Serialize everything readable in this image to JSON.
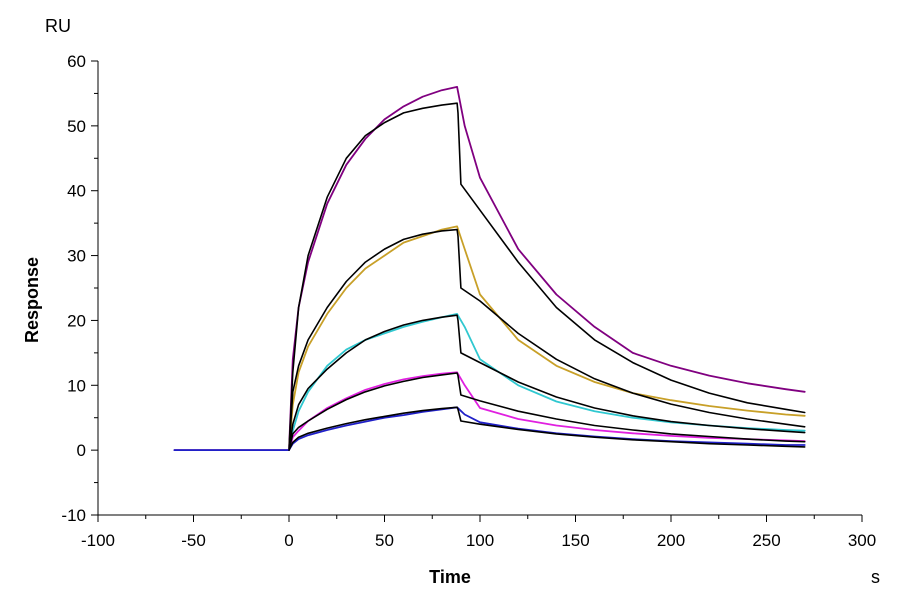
{
  "chart_data": {
    "type": "line",
    "xlabel": "Time",
    "ylabel": "Response",
    "x_unit": "s",
    "y_unit": "RU",
    "xlim": [
      -100,
      300
    ],
    "ylim": [
      -10,
      60
    ],
    "x_ticks": [
      -100,
      -50,
      0,
      50,
      100,
      150,
      200,
      250,
      300
    ],
    "y_ticks": [
      -10,
      0,
      10,
      20,
      30,
      40,
      50,
      60
    ],
    "grid": false,
    "legend": "none",
    "series": [
      {
        "color": "#800080",
        "x": [
          -60,
          0,
          2,
          5,
          10,
          20,
          30,
          40,
          50,
          60,
          70,
          80,
          88,
          92,
          100,
          120,
          140,
          160,
          180,
          200,
          220,
          240,
          260,
          270
        ],
        "values": [
          0,
          0,
          14,
          22,
          29,
          38,
          44,
          48,
          51,
          53,
          54.5,
          55.5,
          56,
          50,
          42,
          31,
          24,
          19,
          15,
          13,
          11.5,
          10.3,
          9.4,
          9.0
        ]
      },
      {
        "color": "#000000",
        "x": [
          0,
          2,
          5,
          10,
          20,
          30,
          40,
          50,
          60,
          70,
          80,
          88,
          88.5,
          90,
          100,
          120,
          140,
          160,
          180,
          200,
          220,
          240,
          260,
          270
        ],
        "values": [
          0,
          12,
          22,
          30,
          39,
          45,
          48.5,
          50.5,
          52,
          52.7,
          53.2,
          53.5,
          52,
          41,
          37,
          29,
          22,
          17,
          13.5,
          10.8,
          8.8,
          7.3,
          6.3,
          5.8
        ]
      },
      {
        "color": "#C8A028",
        "x": [
          -60,
          0,
          2,
          5,
          10,
          20,
          30,
          40,
          50,
          60,
          70,
          80,
          88,
          92,
          100,
          120,
          140,
          160,
          180,
          200,
          220,
          240,
          260,
          270
        ],
        "values": [
          0,
          0,
          7,
          12,
          16,
          21,
          25,
          28,
          30,
          32,
          33,
          34,
          34.5,
          31,
          24,
          17,
          13,
          10.5,
          8.8,
          7.7,
          6.8,
          6.1,
          5.5,
          5.3
        ]
      },
      {
        "color": "#000000",
        "x": [
          0,
          2,
          5,
          10,
          20,
          30,
          40,
          50,
          60,
          70,
          80,
          88,
          88.5,
          90,
          100,
          120,
          140,
          160,
          180,
          200,
          220,
          240,
          260,
          270
        ],
        "values": [
          0,
          9,
          13,
          17,
          22,
          26,
          29,
          31,
          32.5,
          33.3,
          33.8,
          34,
          33,
          25,
          23,
          18,
          14,
          11,
          8.8,
          7.1,
          5.8,
          4.8,
          4.0,
          3.6
        ]
      },
      {
        "color": "#30C8D0",
        "x": [
          -60,
          0,
          2,
          5,
          10,
          20,
          30,
          40,
          50,
          60,
          70,
          80,
          88,
          92,
          100,
          120,
          140,
          160,
          180,
          200,
          220,
          240,
          260,
          270
        ],
        "values": [
          0,
          0,
          3,
          6,
          9,
          13,
          15.5,
          17,
          18,
          19,
          19.8,
          20.5,
          21,
          19,
          14,
          10,
          7.5,
          6,
          5,
          4.3,
          3.8,
          3.4,
          3.1,
          3.0
        ]
      },
      {
        "color": "#000000",
        "x": [
          0,
          2,
          5,
          10,
          20,
          30,
          40,
          50,
          60,
          70,
          80,
          88,
          88.5,
          90,
          100,
          120,
          140,
          160,
          180,
          200,
          220,
          240,
          260,
          270
        ],
        "values": [
          0,
          4,
          7,
          9.5,
          12.5,
          15,
          17,
          18.3,
          19.3,
          20,
          20.5,
          20.8,
          20,
          15,
          13.5,
          10.5,
          8.2,
          6.5,
          5.3,
          4.4,
          3.8,
          3.3,
          2.9,
          2.7
        ]
      },
      {
        "color": "#E020E0",
        "x": [
          -60,
          0,
          2,
          5,
          10,
          20,
          30,
          40,
          50,
          60,
          70,
          80,
          88,
          92,
          100,
          120,
          140,
          160,
          180,
          200,
          220,
          240,
          260,
          270
        ],
        "values": [
          0,
          0,
          2,
          3,
          4.5,
          6.5,
          8,
          9.3,
          10.2,
          10.9,
          11.4,
          11.8,
          12,
          10,
          6.5,
          4.8,
          3.8,
          3.1,
          2.6,
          2.2,
          1.9,
          1.7,
          1.5,
          1.4
        ]
      },
      {
        "color": "#000000",
        "x": [
          0,
          2,
          5,
          10,
          20,
          30,
          40,
          50,
          60,
          70,
          80,
          88,
          88.5,
          90,
          100,
          120,
          140,
          160,
          180,
          200,
          220,
          240,
          260,
          270
        ],
        "values": [
          0,
          2.5,
          3.5,
          4.5,
          6.3,
          7.8,
          9,
          9.9,
          10.6,
          11.2,
          11.6,
          11.9,
          11.5,
          8.5,
          7.6,
          6,
          4.8,
          3.8,
          3.1,
          2.5,
          2.1,
          1.7,
          1.4,
          1.3
        ]
      },
      {
        "color": "#2020C8",
        "x": [
          -60,
          0,
          2,
          5,
          10,
          20,
          30,
          40,
          50,
          60,
          70,
          80,
          88,
          92,
          100,
          120,
          140,
          160,
          180,
          200,
          220,
          240,
          260,
          270
        ],
        "values": [
          0,
          0,
          1,
          1.7,
          2.3,
          3.1,
          3.8,
          4.4,
          5,
          5.4,
          5.9,
          6.3,
          6.6,
          5.5,
          4.3,
          3.3,
          2.6,
          2.1,
          1.7,
          1.4,
          1.2,
          1.0,
          0.8,
          0.8
        ]
      },
      {
        "color": "#000000",
        "x": [
          0,
          2,
          5,
          10,
          20,
          30,
          40,
          50,
          60,
          70,
          80,
          88,
          88.5,
          90,
          100,
          120,
          140,
          160,
          180,
          200,
          220,
          240,
          260,
          270
        ],
        "values": [
          0,
          1.2,
          2.0,
          2.6,
          3.4,
          4.1,
          4.7,
          5.2,
          5.7,
          6.1,
          6.4,
          6.6,
          6.3,
          4.5,
          4.0,
          3.2,
          2.5,
          2.0,
          1.6,
          1.3,
          1.0,
          0.8,
          0.6,
          0.5
        ]
      }
    ]
  }
}
